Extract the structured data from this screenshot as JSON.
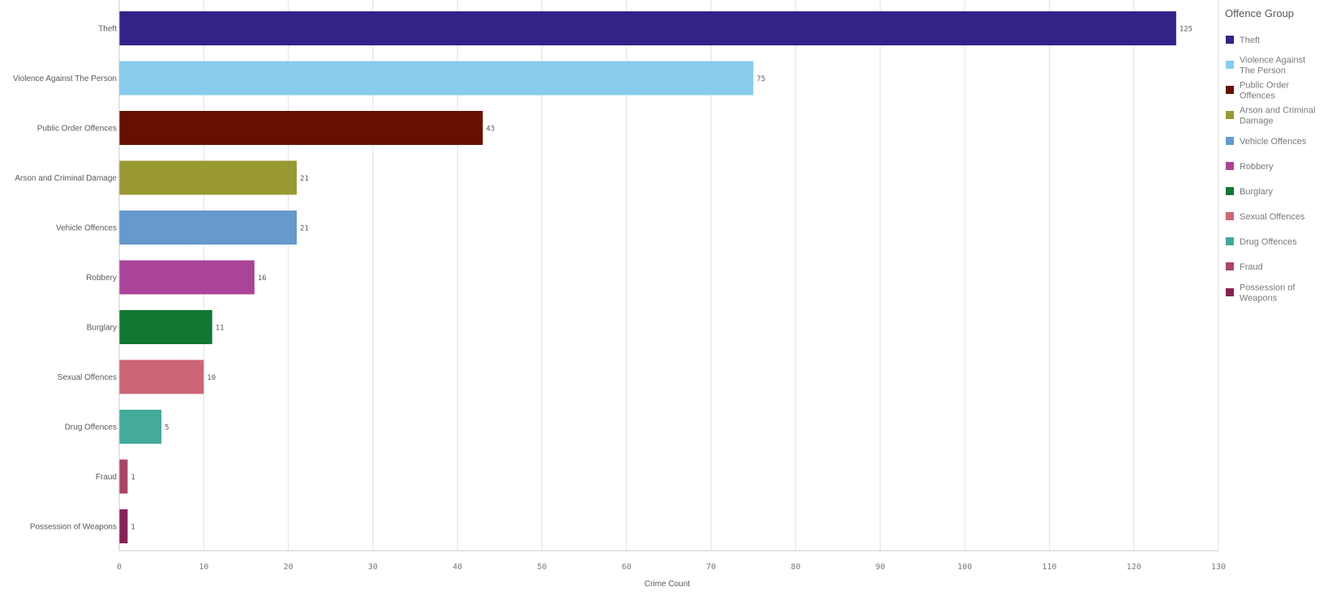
{
  "chart_data": {
    "type": "bar",
    "orientation": "horizontal",
    "categories": [
      "Theft",
      "Violence Against The Person",
      "Public Order Offences",
      "Arson and Criminal Damage",
      "Vehicle Offences",
      "Robbery",
      "Burglary",
      "Sexual Offences",
      "Drug Offences",
      "Fraud",
      "Possession of Weapons"
    ],
    "values": [
      125,
      75,
      43,
      21,
      21,
      16,
      11,
      10,
      5,
      1,
      1
    ],
    "colors": [
      "#332288",
      "#88ccee",
      "#661100",
      "#999933",
      "#6699cc",
      "#aa4499",
      "#117733",
      "#cc6677",
      "#44aa99",
      "#aa4466",
      "#882255"
    ],
    "xlabel": "Crime Count",
    "xlim": [
      0,
      130
    ],
    "xticks": [
      0,
      10,
      20,
      30,
      40,
      50,
      60,
      70,
      80,
      90,
      100,
      110,
      120,
      130
    ],
    "grid": true,
    "legend": {
      "title": "Offence Group",
      "placement": "right",
      "items": [
        [
          "Theft"
        ],
        [
          "Violence Against",
          "The Person"
        ],
        [
          "Public Order",
          "Offences"
        ],
        [
          "Arson and Criminal",
          "Damage"
        ],
        [
          "Vehicle Offences"
        ],
        [
          "Robbery"
        ],
        [
          "Burglary"
        ],
        [
          "Sexual Offences"
        ],
        [
          "Drug Offences"
        ],
        [
          "Fraud"
        ],
        [
          "Possession of",
          "Weapons"
        ]
      ]
    }
  }
}
